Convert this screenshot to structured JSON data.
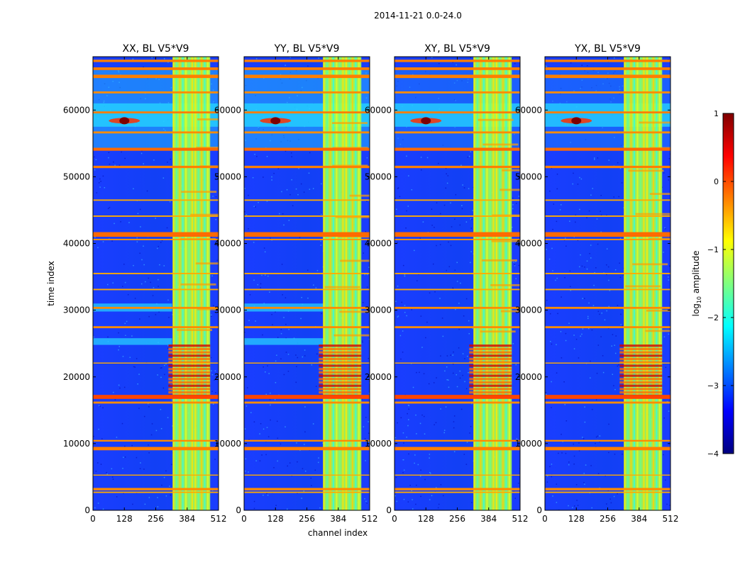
{
  "figure_title": "2014-11-21 0.0-24.0",
  "shared_ylabel": "time index",
  "shared_xlabel": "channel index",
  "colorbar": {
    "label": "log10 amplitude",
    "label_main": "log",
    "label_sub": "10",
    "label_rest": " amplitude",
    "range": [
      -4,
      1
    ],
    "ticks": [
      1,
      0,
      -1,
      -2,
      -3,
      -4
    ],
    "tick_labels": [
      "1",
      "0",
      "−1",
      "−2",
      "−3",
      "−4"
    ],
    "colormap": "jet",
    "colors": [
      "#00007f",
      "#0000ff",
      "#007fff",
      "#00ffff",
      "#7fff7f",
      "#ffff00",
      "#ff7f00",
      "#ff0000",
      "#7f0000"
    ]
  },
  "chart_data": [
    {
      "type": "heatmap",
      "title": "XX, BL V5*V9",
      "xlim": [
        0,
        512
      ],
      "ylim": [
        0,
        68000
      ],
      "xticks": [
        0,
        128,
        256,
        384,
        512
      ],
      "yticks": [
        0,
        10000,
        20000,
        30000,
        40000,
        50000,
        60000
      ]
    },
    {
      "type": "heatmap",
      "title": "YY, BL V5*V9",
      "xlim": [
        0,
        512
      ],
      "ylim": [
        0,
        68000
      ],
      "xticks": [
        0,
        128,
        256,
        384,
        512
      ],
      "yticks": [
        0,
        10000,
        20000,
        30000,
        40000,
        50000,
        60000
      ]
    },
    {
      "type": "heatmap",
      "title": "XY, BL V5*V9",
      "xlim": [
        0,
        512
      ],
      "ylim": [
        0,
        68000
      ],
      "xticks": [
        0,
        128,
        256,
        384,
        512
      ],
      "yticks": [
        0,
        10000,
        20000,
        30000,
        40000,
        50000,
        60000
      ]
    },
    {
      "type": "heatmap",
      "title": "YX, BL V5*V9",
      "xlim": [
        0,
        512
      ],
      "ylim": [
        0,
        68000
      ],
      "xticks": [
        0,
        128,
        256,
        384,
        512
      ],
      "yticks": [
        0,
        10000,
        20000,
        30000,
        40000,
        50000,
        60000
      ]
    }
  ]
}
